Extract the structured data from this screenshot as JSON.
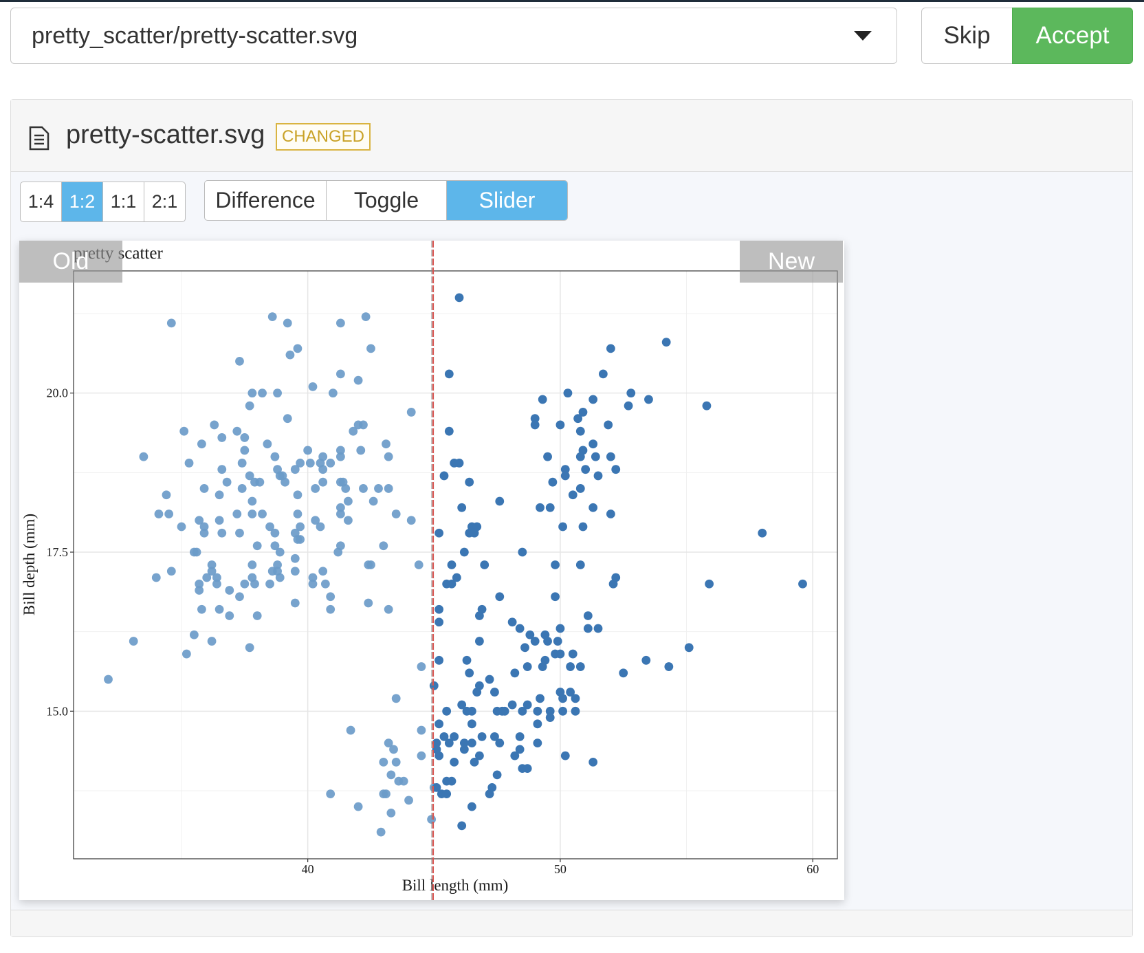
{
  "file_select": {
    "value": "pretty_scatter/pretty-scatter.svg"
  },
  "buttons": {
    "skip": "Skip",
    "accept": "Accept"
  },
  "file": {
    "name": "pretty-scatter.svg",
    "status": "CHANGED"
  },
  "zoom": {
    "options": [
      "1:4",
      "1:2",
      "1:1",
      "2:1"
    ],
    "selected": 1
  },
  "modes": {
    "options": [
      "Difference",
      "Toggle",
      "Slider"
    ],
    "selected": 2
  },
  "chart_data": {
    "type": "scatter",
    "title": "pretty scatter",
    "x_label": "Bill length (mm)",
    "y_label": "Bill depth (mm)",
    "xlim": [
      30.725,
      60.975
    ],
    "ylim": [
      12.68,
      21.92
    ],
    "xticks": [
      40,
      50,
      60
    ],
    "yticks": [
      {
        "value": 15,
        "label": "15.0"
      },
      {
        "value": 17.5,
        "label": "17.5"
      },
      {
        "value": 20,
        "label": "20.0"
      }
    ],
    "xgrid_minor": [
      35,
      45,
      55
    ],
    "ygrid_minor": [
      13.75,
      16.25,
      18.75,
      21.25
    ],
    "grid": true,
    "series": [
      {
        "name": "Old",
        "color": "#6b9bc9",
        "x": [
          34.6,
          38.6,
          39.2,
          41.3,
          42.3,
          39.6,
          39.3,
          42.5,
          37.3,
          41.3,
          42.0,
          40.2,
          37.8,
          38.2,
          38.8,
          41.0,
          37.7,
          44.1,
          39.2,
          36.3,
          42.0,
          42.2,
          35.1,
          37.2,
          41.8,
          36.6,
          37.5,
          35.8,
          38.4,
          43.1,
          40.0,
          41.3,
          42.1,
          33.5,
          37.5,
          38.7,
          40.6,
          41.3,
          43.2,
          35.3,
          37.4,
          39.7,
          40.1,
          40.5,
          40.9,
          36.6,
          38.8,
          39.5,
          40.6,
          37.7,
          38.9,
          39.0,
          36.8,
          37.9,
          38.1,
          39.1,
          40.6,
          41.3,
          41.4,
          35.9,
          37.4,
          40.3,
          41.5,
          42.2,
          42.8,
          43.2,
          34.4,
          36.5,
          39.6,
          41.6,
          37.8,
          42.6,
          41.3,
          34.1,
          34.5,
          37.2,
          37.8,
          38.2,
          39.6,
          41.3,
          43.5,
          35.7,
          36.5,
          40.3,
          41.6,
          44.1,
          35.0,
          35.9,
          38.5,
          39.7,
          40.5,
          35.9,
          36.6,
          37.3,
          38.7,
          39.5,
          39.6,
          39.7,
          38.0,
          38.7,
          41.3,
          43.0,
          35.5,
          35.6,
          38.9,
          41.2,
          39.5,
          36.2,
          37.8,
          38.8,
          42.4,
          42.5,
          44.4,
          34.6,
          36.2,
          38.6,
          38.8,
          40.6,
          39.5,
          34.0,
          36.0,
          36.4,
          37.8,
          38.9,
          40.2,
          35.7,
          37.5,
          37.9,
          38.5,
          40.2,
          40.7,
          35.7,
          36.4,
          36.9,
          40.9,
          37.3,
          39.5,
          42.4,
          35.8,
          36.5,
          40.9,
          43.2,
          36.9,
          38.0,
          35.5,
          33.1,
          36.2,
          37.7,
          35.2,
          44.5,
          32.1,
          43.5,
          41.7,
          44.5,
          43.2,
          43.4,
          44.5,
          43.0,
          43.5,
          43.3,
          43.6,
          43.8,
          45.0,
          40.9,
          43.0,
          43.1,
          44.0,
          42.0,
          43.3,
          44.9,
          42.9
        ],
        "values": [
          21.1,
          21.2,
          21.1,
          21.1,
          21.2,
          20.7,
          20.6,
          20.7,
          20.5,
          20.3,
          20.2,
          20.1,
          20.0,
          20.0,
          20.0,
          20.0,
          19.8,
          19.7,
          19.6,
          19.5,
          19.5,
          19.5,
          19.4,
          19.4,
          19.4,
          19.3,
          19.3,
          19.2,
          19.2,
          19.2,
          19.1,
          19.1,
          19.1,
          19.0,
          19.1,
          19.0,
          19.0,
          19.0,
          19.0,
          18.9,
          18.9,
          18.9,
          18.9,
          18.9,
          18.9,
          18.8,
          18.8,
          18.8,
          18.8,
          18.7,
          18.7,
          18.7,
          18.6,
          18.6,
          18.6,
          18.6,
          18.6,
          18.6,
          18.6,
          18.5,
          18.5,
          18.5,
          18.5,
          18.5,
          18.5,
          18.5,
          18.4,
          18.4,
          18.4,
          18.3,
          18.3,
          18.3,
          18.2,
          18.1,
          18.1,
          18.1,
          18.1,
          18.1,
          18.1,
          18.1,
          18.1,
          18.0,
          18.0,
          18.0,
          18.0,
          18.0,
          17.9,
          17.9,
          17.9,
          17.9,
          17.9,
          17.8,
          17.8,
          17.8,
          17.8,
          17.8,
          17.7,
          17.7,
          17.6,
          17.6,
          17.6,
          17.6,
          17.5,
          17.5,
          17.5,
          17.5,
          17.4,
          17.3,
          17.3,
          17.3,
          17.3,
          17.3,
          17.3,
          17.2,
          17.2,
          17.2,
          17.2,
          17.2,
          17.2,
          17.1,
          17.1,
          17.1,
          17.1,
          17.1,
          17.1,
          17.0,
          17.0,
          17.0,
          17.0,
          17.0,
          17.0,
          16.9,
          17.0,
          16.9,
          16.8,
          16.8,
          16.7,
          16.7,
          16.6,
          16.6,
          16.6,
          16.6,
          16.5,
          16.5,
          16.2,
          16.1,
          16.1,
          16.0,
          15.9,
          15.7,
          15.5,
          15.2,
          14.7,
          14.7,
          14.5,
          14.4,
          14.3,
          14.2,
          14.2,
          14.0,
          13.9,
          13.9,
          13.8,
          13.7,
          13.7,
          13.7,
          13.6,
          13.5,
          13.4,
          13.3,
          13.1
        ]
      },
      {
        "name": "New",
        "color": "#3b76b3",
        "x": [
          46.0,
          54.2,
          52.0,
          45.6,
          51.7,
          52.8,
          50.3,
          49.3,
          51.3,
          53.5,
          52.7,
          55.8,
          50.9,
          49.0,
          50.7,
          49.0,
          50.0,
          51.9,
          45.6,
          50.8,
          51.3,
          50.9,
          49.5,
          50.8,
          51.4,
          52.0,
          45.8,
          46.0,
          50.2,
          51.0,
          52.2,
          45.4,
          50.2,
          51.5,
          46.4,
          49.7,
          50.8,
          50.5,
          47.6,
          46.1,
          49.2,
          49.6,
          51.3,
          52.0,
          46.5,
          46.7,
          50.1,
          50.9,
          45.2,
          46.4,
          46.6,
          58.0,
          46.2,
          48.5,
          45.7,
          47.0,
          49.8,
          50.8,
          45.9,
          52.2,
          45.5,
          45.7,
          52.1,
          55.9,
          59.6,
          47.6,
          49.8,
          45.2,
          46.9,
          46.8,
          51.1,
          45.2,
          48.1,
          48.4,
          50.0,
          51.1,
          51.5,
          48.8,
          49.4,
          46.8,
          49.0,
          49.5,
          49.9,
          48.6,
          55.1,
          49.8,
          50.0,
          50.5,
          45.2,
          46.3,
          49.4,
          53.4,
          48.7,
          49.3,
          50.4,
          50.8,
          54.3,
          46.4,
          48.2,
          52.5,
          47.2,
          45.0,
          46.8,
          46.7,
          47.4,
          50.0,
          50.4,
          49.2,
          50.1,
          50.6,
          46.1,
          48.1,
          48.7,
          45.5,
          46.3,
          46.5,
          47.5,
          47.7,
          47.8,
          48.5,
          49.1,
          49.6,
          50.1,
          50.6,
          49.6,
          45.2,
          46.5,
          49.1,
          46.9,
          47.4,
          48.4,
          45.4,
          45.8,
          45.1,
          45.6,
          46.2,
          46.5,
          47.6,
          49.1,
          46.2,
          48.4,
          45.1,
          45.2,
          46.8,
          48.2,
          50.2,
          45.8,
          46.6,
          51.3,
          48.5,
          48.7,
          47.5,
          45.5,
          45.7,
          45.1,
          47.3,
          45.3,
          45.5,
          47.2,
          46.5,
          46.1
        ],
        "values": [
          21.5,
          20.8,
          20.7,
          20.3,
          20.3,
          20.0,
          20.0,
          19.9,
          19.9,
          19.9,
          19.8,
          19.8,
          19.7,
          19.6,
          19.6,
          19.5,
          19.5,
          19.5,
          19.4,
          19.4,
          19.2,
          19.1,
          19.0,
          19.0,
          19.0,
          19.0,
          18.9,
          18.9,
          18.8,
          18.8,
          18.8,
          18.7,
          18.7,
          18.7,
          18.6,
          18.6,
          18.5,
          18.4,
          18.3,
          18.2,
          18.2,
          18.2,
          18.2,
          18.1,
          17.9,
          17.9,
          17.9,
          17.9,
          17.8,
          17.8,
          17.8,
          17.8,
          17.5,
          17.5,
          17.3,
          17.3,
          17.3,
          17.3,
          17.1,
          17.1,
          17.0,
          17.0,
          17.0,
          17.0,
          17.0,
          16.8,
          16.8,
          16.6,
          16.6,
          16.5,
          16.5,
          16.4,
          16.4,
          16.3,
          16.3,
          16.3,
          16.3,
          16.2,
          16.2,
          16.1,
          16.1,
          16.1,
          16.1,
          16.0,
          16.0,
          15.9,
          15.9,
          15.9,
          15.8,
          15.8,
          15.8,
          15.8,
          15.7,
          15.7,
          15.7,
          15.7,
          15.7,
          15.6,
          15.6,
          15.6,
          15.5,
          15.4,
          15.4,
          15.3,
          15.3,
          15.3,
          15.3,
          15.2,
          15.2,
          15.2,
          15.1,
          15.1,
          15.1,
          15.0,
          15.0,
          15.0,
          15.0,
          15.0,
          15.0,
          15.0,
          15.0,
          15.0,
          15.0,
          15.0,
          14.9,
          14.8,
          14.8,
          14.8,
          14.6,
          14.6,
          14.6,
          14.6,
          14.6,
          14.5,
          14.5,
          14.5,
          14.5,
          14.5,
          14.5,
          14.4,
          14.4,
          14.4,
          14.3,
          14.3,
          14.3,
          14.3,
          14.2,
          14.2,
          14.2,
          14.1,
          14.1,
          14.0,
          13.9,
          13.9,
          13.8,
          13.8,
          13.7,
          13.7,
          13.7,
          13.5,
          13.2
        ]
      }
    ]
  }
}
